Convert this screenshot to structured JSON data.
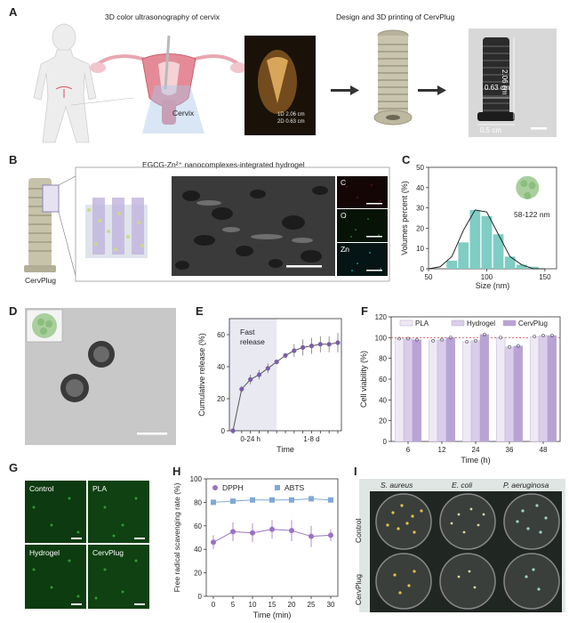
{
  "panel_letters": [
    "A",
    "B",
    "C",
    "D",
    "E",
    "F",
    "G",
    "H",
    "I"
  ],
  "panelA": {
    "title_left": "3D color ultrasonography of cervix",
    "title_right": "Design and 3D printing of CervPlug",
    "cervix_label": "Cervix",
    "us_readout": [
      "1D 2.06 cm",
      "2D 0.63 cm"
    ],
    "dims": [
      "2.06 cm",
      "0.63 cm",
      "0.5 cm"
    ]
  },
  "panelB": {
    "title": "EGCG-Zn²⁺ nanocomplexes-integrated hydrogel",
    "device_label": "CervPlug",
    "eds": [
      "C",
      "O",
      "Zn"
    ],
    "eds_colors": [
      "#7a1a1a",
      "#2f8a2f",
      "#2aa3a3"
    ]
  },
  "panelC": {
    "inset_label": "58-122 nm",
    "chart_data": {
      "type": "bar",
      "x": [
        70,
        80,
        90,
        100,
        110,
        120,
        130,
        140
      ],
      "values": [
        4,
        13,
        29,
        26,
        17,
        6,
        2,
        1
      ],
      "fit_x": [
        50,
        60,
        70,
        80,
        90,
        100,
        110,
        120,
        130,
        140,
        150
      ],
      "fit_y": [
        0,
        1,
        6,
        19,
        29,
        28,
        17,
        6,
        2,
        0,
        0
      ],
      "xlabel": "Size (nm)",
      "ylabel": "Volumes percent (%)",
      "xlim": [
        50,
        160
      ],
      "ylim": [
        0,
        50
      ],
      "xticks": [
        50,
        100,
        150
      ],
      "yticks": [
        0,
        10,
        20,
        30,
        40,
        50
      ],
      "bar_color": "#7fcdc4"
    }
  },
  "panelE": {
    "shade_label": [
      "Fast",
      "release"
    ],
    "chart_data": {
      "type": "line",
      "x": [
        0,
        1,
        2,
        3,
        4,
        5,
        6,
        7,
        8,
        9,
        10,
        11,
        12
      ],
      "values": [
        0,
        26,
        32,
        35,
        39,
        43,
        47,
        50,
        52,
        53,
        54,
        54,
        55
      ],
      "errors": [
        0,
        2,
        3,
        3,
        3,
        1,
        1,
        4,
        5,
        5,
        5,
        5,
        6
      ],
      "xlabel": "Time",
      "ylabel": "Cumulative release (%)",
      "ylim": [
        0,
        70
      ],
      "yticks": [
        0,
        20,
        40,
        60
      ],
      "xtick_labels": [
        "0-24 h",
        "1-8 d"
      ],
      "color": "#7b5ea7"
    }
  },
  "panelF": {
    "chart_data": {
      "type": "bar",
      "categories": [
        "6",
        "12",
        "24",
        "36",
        "48"
      ],
      "series": [
        {
          "name": "PLA",
          "values": [
            99,
            97,
            96,
            100,
            101
          ],
          "color": "#efe9f5"
        },
        {
          "name": "Hydrogel",
          "values": [
            99,
            98,
            97,
            91,
            102
          ],
          "color": "#d9cdea"
        },
        {
          "name": "CervPlug",
          "values": [
            98,
            100,
            103,
            92,
            102
          ],
          "color": "#b8a3d4"
        }
      ],
      "xlabel": "Time (h)",
      "ylabel": "Cell viability (%)",
      "ylim": [
        0,
        120
      ],
      "yticks": [
        0,
        20,
        40,
        60,
        80,
        100,
        120
      ],
      "ref_line": 100
    }
  },
  "panelG": {
    "labels": [
      "Control",
      "PLA",
      "Hydrogel",
      "CervPlug"
    ]
  },
  "panelH": {
    "chart_data": {
      "type": "line",
      "x": [
        0,
        5,
        10,
        15,
        20,
        25,
        30
      ],
      "series": [
        {
          "name": "DPPH",
          "values": [
            46,
            55,
            54,
            57,
            56,
            51,
            52
          ],
          "errors": [
            6,
            8,
            8,
            8,
            9,
            9,
            5
          ],
          "color": "#9b72c2"
        },
        {
          "name": "ABTS",
          "values": [
            80,
            81,
            82,
            82,
            82,
            83,
            82
          ],
          "errors": [
            1,
            1,
            1,
            1,
            1,
            1,
            1
          ],
          "color": "#7fa8d8"
        }
      ],
      "xlabel": "Time (min)",
      "ylabel": "Free radical scavenging rate (%)",
      "ylim": [
        0,
        100
      ],
      "yticks": [
        0,
        20,
        40,
        60,
        80,
        100
      ],
      "xticks": [
        0,
        5,
        10,
        15,
        20,
        25,
        30
      ]
    }
  },
  "panelI": {
    "cols": [
      "S. aureus",
      "E. coli",
      "P. aeruginosa"
    ],
    "rows": [
      "Control",
      "CervPlug"
    ]
  }
}
